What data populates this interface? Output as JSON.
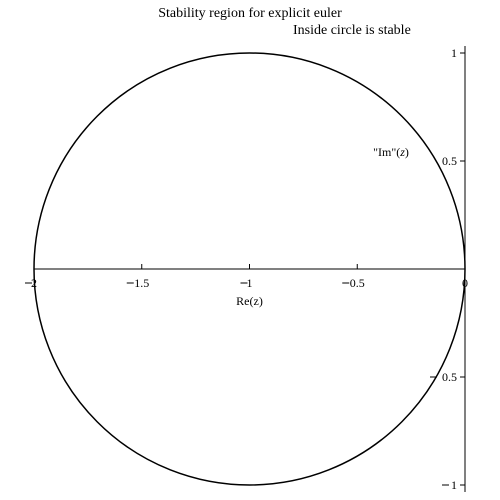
{
  "chart_data": {
    "type": "line",
    "title": "Stability region for explicit euler",
    "subtitle": "Inside circle is stable",
    "xlabel": "Re(z)",
    "ylabel": "\"Im\"(z)",
    "xlim": [
      -2,
      0
    ],
    "ylim": [
      -1,
      1
    ],
    "xticks": [
      -2,
      -1.5,
      -1,
      -0.5,
      0
    ],
    "xtick_labels": [
      "2",
      "1.5",
      "1",
      "0.5",
      "0"
    ],
    "yticks": [
      -1,
      -0.5,
      0.5,
      1
    ],
    "ytick_labels": [
      "1",
      "0.5",
      "0.5",
      "1"
    ],
    "grid": false,
    "series": [
      {
        "shape": "circle",
        "center": [
          -1,
          0
        ],
        "radius": 1,
        "color": "#000000"
      }
    ]
  }
}
